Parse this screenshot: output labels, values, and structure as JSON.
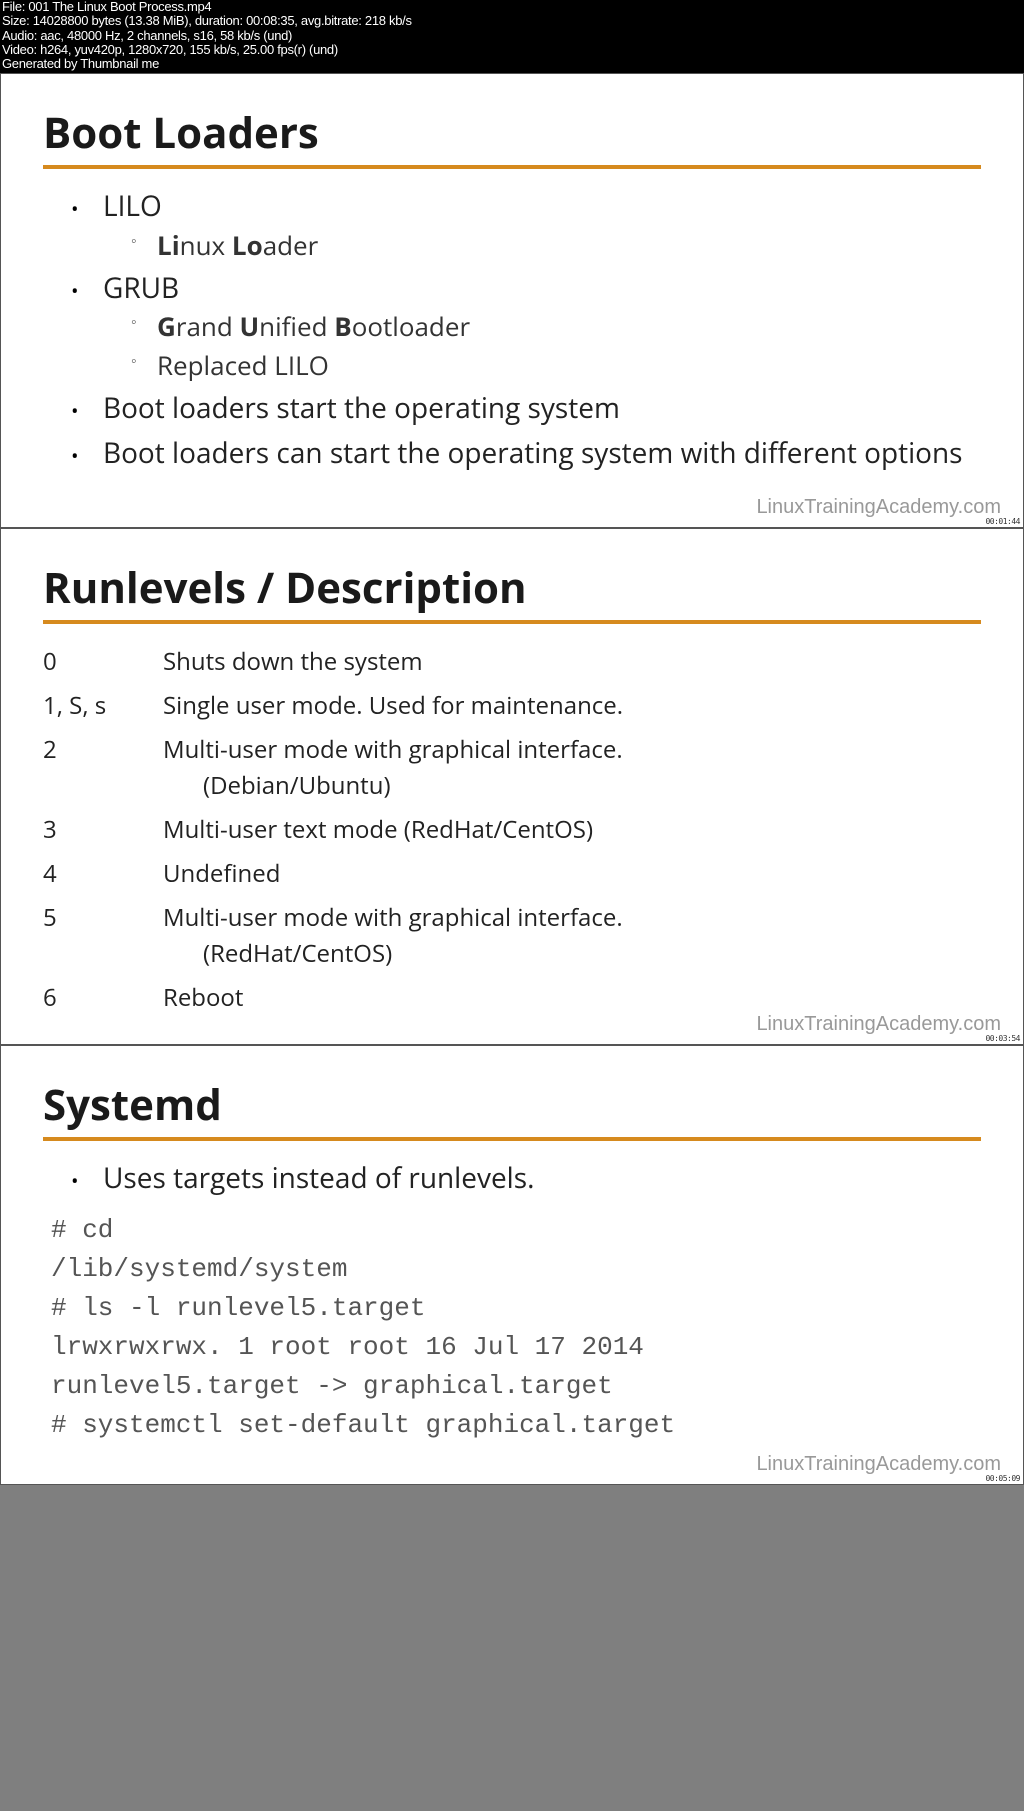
{
  "metadata": {
    "file": "File: 001 The Linux Boot Process.mp4",
    "size": "Size: 14028800 bytes (13.38 MiB), duration: 00:08:35, avg.bitrate: 218 kb/s",
    "audio": "Audio: aac, 48000 Hz, 2 channels, s16, 58 kb/s (und)",
    "video": "Video: h264, yuv420p, 1280x720, 155 kb/s, 25.00 fps(r) (und)",
    "generated": "Generated by Thumbnail me"
  },
  "watermark": "LinuxTrainingAcademy.com",
  "accent_color": "#d68a1e",
  "slide1": {
    "title": "Boot Loaders",
    "item1": "LILO",
    "item1_sub1_html": "<b>Li</b>nux <b>Lo</b>ader",
    "item2": "GRUB",
    "item2_sub1_html": "<b>G</b>rand <b>U</b>nified <b>B</b>ootloader",
    "item2_sub2": "Replaced LILO",
    "item3": "Boot loaders start the operating system",
    "item4": "Boot loaders can start the operating system with different options",
    "timestamp": "00:01:44"
  },
  "slide2": {
    "title": "Runlevels  / Description",
    "rows": [
      {
        "key": "0",
        "desc": "Shuts down the system"
      },
      {
        "key": "1, S, s",
        "desc": "Single user mode.  Used for maintenance."
      },
      {
        "key": "2",
        "desc": "Multi-user mode with graphical interface.",
        "desc2": "(Debian/Ubuntu)"
      },
      {
        "key": "3",
        "desc": "Multi-user text mode (RedHat/CentOS)"
      },
      {
        "key": "4",
        "desc": "Undefined"
      },
      {
        "key": "5",
        "desc": "Multi-user mode with graphical interface.",
        "desc2": "(RedHat/CentOS)"
      },
      {
        "key": "6",
        "desc": "Reboot"
      }
    ],
    "timestamp": "00:03:54"
  },
  "slide3": {
    "title": "Systemd",
    "bullet": "Uses targets instead of runlevels.",
    "code": [
      "# cd",
      "/lib/systemd/system",
      "# ls -l runlevel5.target",
      "lrwxrwxrwx. 1 root root 16 Jul 17  2014",
      "runlevel5.target -> graphical.target",
      "# systemctl set-default graphical.target"
    ],
    "timestamp": "00:05:09"
  }
}
